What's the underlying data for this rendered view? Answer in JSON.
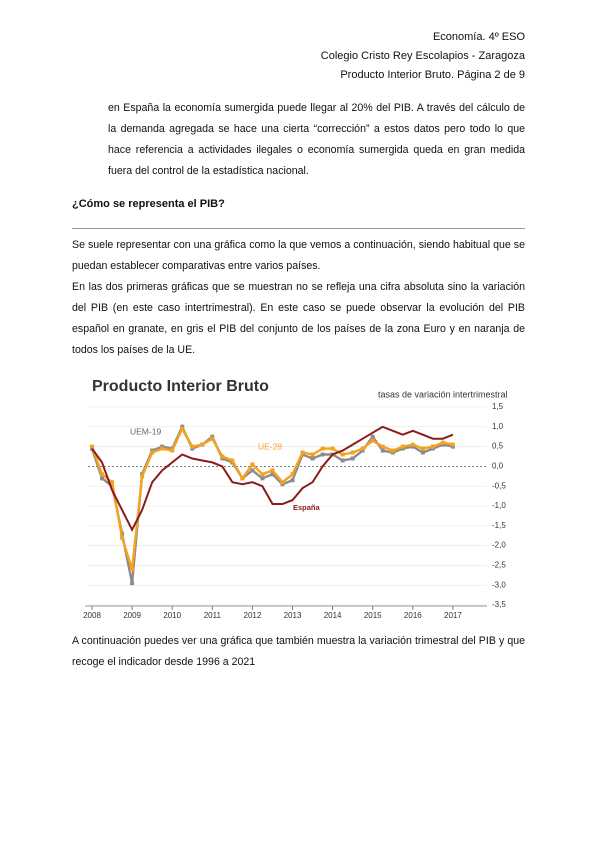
{
  "header": {
    "lines": [
      "Economía. 4º ESO",
      "Colegio Cristo Rey Escolapios - Zaragoza",
      "Producto Interior Bruto. Página 2 de 9"
    ]
  },
  "paragraphs": [
    "en España la economía sumergida puede llegar al 20% del PIB. A través del cálculo de la demanda agregada se hace una cierta “corrección” a estos datos pero todo lo que hace referencia a actividades ilegales o economía sumergida queda en gran medida fuera del control de la estadística nacional."
  ],
  "section": {
    "heading": "¿Cómo se representa el PIB?",
    "paragraphs": [
      "Se suele representar con una gráfica como la que vemos a continuación, siendo habitual que se puedan establecer comparativas entre varios países.",
      "En las dos primeras gráficas que se muestran no se refleja una cifra absoluta sino la variación del PIB (en este caso intertrimestral). En este caso se puede observar la evolución del PIB español en granate, en gris el PIB del conjunto de los países de la zona Euro y en naranja de todos los países de la UE."
    ],
    "closing": "A continuación puedes ver una gráfica que también muestra la variación trimestral del PIB y que recoge el indicador desde 1996 a 2021"
  },
  "chart_data": {
    "type": "line",
    "title": "Producto Interior Bruto",
    "subtitle": "tasas de variación intertrimestral",
    "x": [
      2008,
      2008.25,
      2008.5,
      2008.75,
      2009,
      2009.25,
      2009.5,
      2009.75,
      2010,
      2010.25,
      2010.5,
      2010.75,
      2011,
      2011.25,
      2011.5,
      2011.75,
      2012,
      2012.25,
      2012.5,
      2012.75,
      2013,
      2013.25,
      2013.5,
      2013.75,
      2014,
      2014.25,
      2014.5,
      2014.75,
      2015,
      2015.25,
      2015.5,
      2015.75,
      2016,
      2016.25,
      2016.5,
      2016.75,
      2017
    ],
    "series": [
      {
        "name": "UEM-19",
        "color": "#8c8c8c",
        "values": [
          0.45,
          -0.3,
          -0.5,
          -1.7,
          -2.95,
          -0.2,
          0.4,
          0.5,
          0.45,
          1.0,
          0.45,
          0.55,
          0.75,
          0.2,
          0.1,
          -0.3,
          -0.1,
          -0.3,
          -0.2,
          -0.45,
          -0.35,
          0.3,
          0.2,
          0.3,
          0.3,
          0.15,
          0.2,
          0.4,
          0.75,
          0.4,
          0.35,
          0.45,
          0.5,
          0.35,
          0.45,
          0.55,
          0.5
        ]
      },
      {
        "name": "UE-28",
        "color": "#f5a31f",
        "values": [
          0.5,
          -0.2,
          -0.4,
          -1.8,
          -2.6,
          -0.25,
          0.35,
          0.45,
          0.4,
          0.95,
          0.5,
          0.55,
          0.7,
          0.25,
          0.15,
          -0.3,
          0.05,
          -0.2,
          -0.1,
          -0.4,
          -0.2,
          0.35,
          0.3,
          0.45,
          0.45,
          0.3,
          0.35,
          0.45,
          0.65,
          0.5,
          0.4,
          0.5,
          0.55,
          0.45,
          0.5,
          0.6,
          0.55
        ]
      },
      {
        "name": "España",
        "color": "#8b1c1c",
        "values": [
          0.45,
          0.1,
          -0.6,
          -1.1,
          -1.6,
          -1.1,
          -0.4,
          -0.1,
          0.1,
          0.3,
          0.2,
          0.15,
          0.1,
          0.0,
          -0.4,
          -0.45,
          -0.4,
          -0.5,
          -0.95,
          -0.95,
          -0.85,
          -0.55,
          -0.4,
          0.0,
          0.3,
          0.4,
          0.55,
          0.7,
          0.85,
          1.0,
          0.9,
          0.8,
          0.9,
          0.8,
          0.7,
          0.7,
          0.8
        ]
      }
    ],
    "xlim": [
      2008,
      2017.75
    ],
    "xticks": [
      2008,
      2009,
      2010,
      2011,
      2012,
      2013,
      2014,
      2015,
      2016,
      2017
    ],
    "ylim": [
      -3.5,
      1.5
    ],
    "yticks": [
      {
        "value": 1.5,
        "label": "1,5"
      },
      {
        "value": 1,
        "label": "1,0"
      },
      {
        "value": 0.5,
        "label": "0,5"
      },
      {
        "value": 0,
        "label": "0,0"
      },
      {
        "value": -0.5,
        "label": "-0,5"
      },
      {
        "value": -1,
        "label": "-1,0"
      },
      {
        "value": -1.5,
        "label": "-1,5"
      },
      {
        "value": -2,
        "label": "-2,0"
      },
      {
        "value": -2.5,
        "label": "-2,5"
      },
      {
        "value": -3,
        "label": "-3,0"
      },
      {
        "value": -3.5,
        "label": "-3,5"
      }
    ],
    "grid": true
  }
}
